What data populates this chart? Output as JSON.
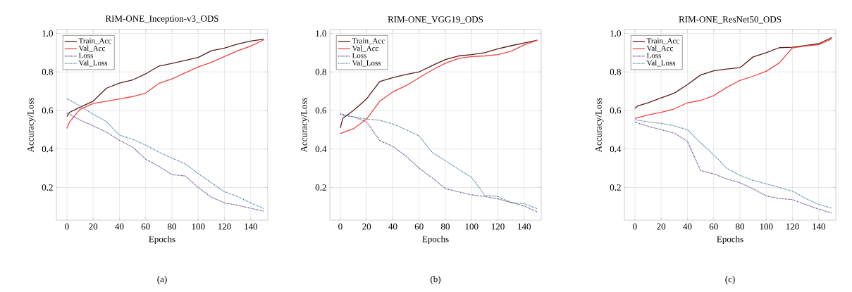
{
  "chart_data": [
    {
      "type": "line",
      "title": "RIM-ONE_Inception-v3_ODS",
      "xlabel": "Epochs",
      "ylabel": "Accuracy/Loss",
      "annotations": [
        "(a)"
      ],
      "x": [
        0,
        2,
        10,
        20,
        30,
        40,
        50,
        60,
        70,
        80,
        90,
        100,
        110,
        120,
        130,
        140,
        150
      ],
      "xlim": [
        -8,
        153
      ],
      "ylim": [
        0.03,
        1.02
      ],
      "xticks": [
        0,
        20,
        40,
        60,
        80,
        100,
        120,
        140
      ],
      "yticks": [
        {
          "value": 0.2,
          "label": "0.2"
        },
        {
          "value": 0.4,
          "label": "0.4"
        },
        {
          "value": 0.6,
          "label": "0.6"
        },
        {
          "value": 0.8,
          "label": "0.8"
        },
        {
          "value": 1.0,
          "label": "1.0"
        }
      ],
      "grid": true,
      "legend": "top left",
      "series": [
        {
          "name": "Train_Acc",
          "color": "#5c1c1c",
          "line_style": "solid",
          "values": [
            0.568,
            0.59,
            0.617,
            0.648,
            0.715,
            0.742,
            0.758,
            0.79,
            0.83,
            0.844,
            0.86,
            0.875,
            0.91,
            0.924,
            0.945,
            0.96,
            0.97
          ]
        },
        {
          "name": "Val_Acc",
          "color": "#ee4440",
          "line_style": "solid",
          "values": [
            0.507,
            0.54,
            0.605,
            0.636,
            0.648,
            0.66,
            0.672,
            0.69,
            0.74,
            0.764,
            0.795,
            0.826,
            0.85,
            0.88,
            0.91,
            0.934,
            0.967
          ]
        },
        {
          "name": "Loss",
          "color": "#6a4a8a",
          "line_style": "dotted",
          "values": [
            0.586,
            0.58,
            0.55,
            0.52,
            0.488,
            0.445,
            0.41,
            0.347,
            0.31,
            0.267,
            0.26,
            0.2,
            0.15,
            0.12,
            0.108,
            0.092,
            0.077
          ]
        },
        {
          "name": "Val_Loss",
          "color": "#4f7f9f",
          "line_style": "dotted",
          "values": [
            0.66,
            0.655,
            0.623,
            0.58,
            0.543,
            0.472,
            0.45,
            0.42,
            0.384,
            0.353,
            0.323,
            0.273,
            0.225,
            0.178,
            0.153,
            0.12,
            0.09
          ]
        }
      ]
    },
    {
      "type": "line",
      "title": "RIM-ONE_VGG19_ODS",
      "xlabel": "Epochs",
      "ylabel": "Accuracy/Loss",
      "annotations": [
        "(b)"
      ],
      "x": [
        0,
        2,
        10,
        20,
        30,
        40,
        50,
        60,
        70,
        80,
        90,
        100,
        110,
        120,
        130,
        140,
        150
      ],
      "xlim": [
        -8,
        153
      ],
      "ylim": [
        0.03,
        1.02
      ],
      "xticks": [
        0,
        20,
        40,
        60,
        80,
        100,
        120,
        140
      ],
      "yticks": [
        {
          "value": 0.2,
          "label": "0.2"
        },
        {
          "value": 0.4,
          "label": "0.4"
        },
        {
          "value": 0.6,
          "label": "0.6"
        },
        {
          "value": 0.8,
          "label": "0.8"
        },
        {
          "value": 1.0,
          "label": "1.0"
        }
      ],
      "grid": true,
      "legend": "top left",
      "series": [
        {
          "name": "Train_Acc",
          "color": "#5c1c1c",
          "line_style": "solid",
          "values": [
            0.51,
            0.56,
            0.6,
            0.66,
            0.75,
            0.77,
            0.787,
            0.8,
            0.833,
            0.864,
            0.883,
            0.89,
            0.9,
            0.92,
            0.936,
            0.95,
            0.965
          ]
        },
        {
          "name": "Val_Acc",
          "color": "#ee4440",
          "line_style": "solid",
          "values": [
            0.48,
            0.485,
            0.505,
            0.555,
            0.648,
            0.697,
            0.728,
            0.77,
            0.81,
            0.845,
            0.87,
            0.88,
            0.883,
            0.89,
            0.907,
            0.94,
            0.965
          ]
        },
        {
          "name": "Loss",
          "color": "#6a4a8a",
          "line_style": "dotted",
          "values": [
            0.58,
            0.575,
            0.567,
            0.54,
            0.444,
            0.413,
            0.363,
            0.3,
            0.25,
            0.194,
            0.178,
            0.162,
            0.153,
            0.141,
            0.122,
            0.104,
            0.073
          ]
        },
        {
          "name": "Val_Loss",
          "color": "#4f7f9f",
          "line_style": "dotted",
          "values": [
            0.586,
            0.58,
            0.567,
            0.555,
            0.549,
            0.53,
            0.5,
            0.468,
            0.382,
            0.339,
            0.295,
            0.252,
            0.16,
            0.153,
            0.122,
            0.116,
            0.09
          ]
        }
      ]
    },
    {
      "type": "line",
      "title": "RIM-ONE_ResNet50_ODS",
      "xlabel": "Epochs",
      "ylabel": "Accuracy/Loss",
      "annotations": [
        "(c)"
      ],
      "x": [
        0,
        2,
        10,
        20,
        30,
        40,
        50,
        60,
        70,
        80,
        90,
        100,
        110,
        120,
        130,
        140,
        150
      ],
      "xlim": [
        -8,
        153
      ],
      "ylim": [
        0.03,
        1.02
      ],
      "xticks": [
        0,
        20,
        40,
        60,
        80,
        100,
        120,
        140
      ],
      "yticks": [
        {
          "value": 0.2,
          "label": "0.2"
        },
        {
          "value": 0.4,
          "label": "0.4"
        },
        {
          "value": 0.6,
          "label": "0.6"
        },
        {
          "value": 0.8,
          "label": "0.8"
        },
        {
          "value": 1.0,
          "label": "1.0"
        }
      ],
      "grid": true,
      "legend": "top left",
      "series": [
        {
          "name": "Train_Acc",
          "color": "#5c1c1c",
          "line_style": "solid",
          "values": [
            0.61,
            0.623,
            0.64,
            0.665,
            0.69,
            0.734,
            0.784,
            0.806,
            0.815,
            0.822,
            0.878,
            0.9,
            0.926,
            0.928,
            0.937,
            0.947,
            0.979
          ]
        },
        {
          "name": "Val_Acc",
          "color": "#ee4440",
          "line_style": "solid",
          "values": [
            0.558,
            0.562,
            0.577,
            0.59,
            0.608,
            0.64,
            0.652,
            0.677,
            0.72,
            0.756,
            0.778,
            0.803,
            0.847,
            0.925,
            0.935,
            0.941,
            0.972
          ]
        },
        {
          "name": "Loss",
          "color": "#6a4a8a",
          "line_style": "dotted",
          "values": [
            0.54,
            0.535,
            0.518,
            0.5,
            0.482,
            0.44,
            0.288,
            0.271,
            0.244,
            0.225,
            0.193,
            0.156,
            0.143,
            0.137,
            0.112,
            0.087,
            0.068
          ]
        },
        {
          "name": "Val_Loss",
          "color": "#4f7f9f",
          "line_style": "dotted",
          "values": [
            0.552,
            0.55,
            0.54,
            0.533,
            0.52,
            0.5,
            0.432,
            0.37,
            0.3,
            0.263,
            0.237,
            0.219,
            0.2,
            0.181,
            0.143,
            0.112,
            0.093
          ]
        }
      ]
    }
  ]
}
